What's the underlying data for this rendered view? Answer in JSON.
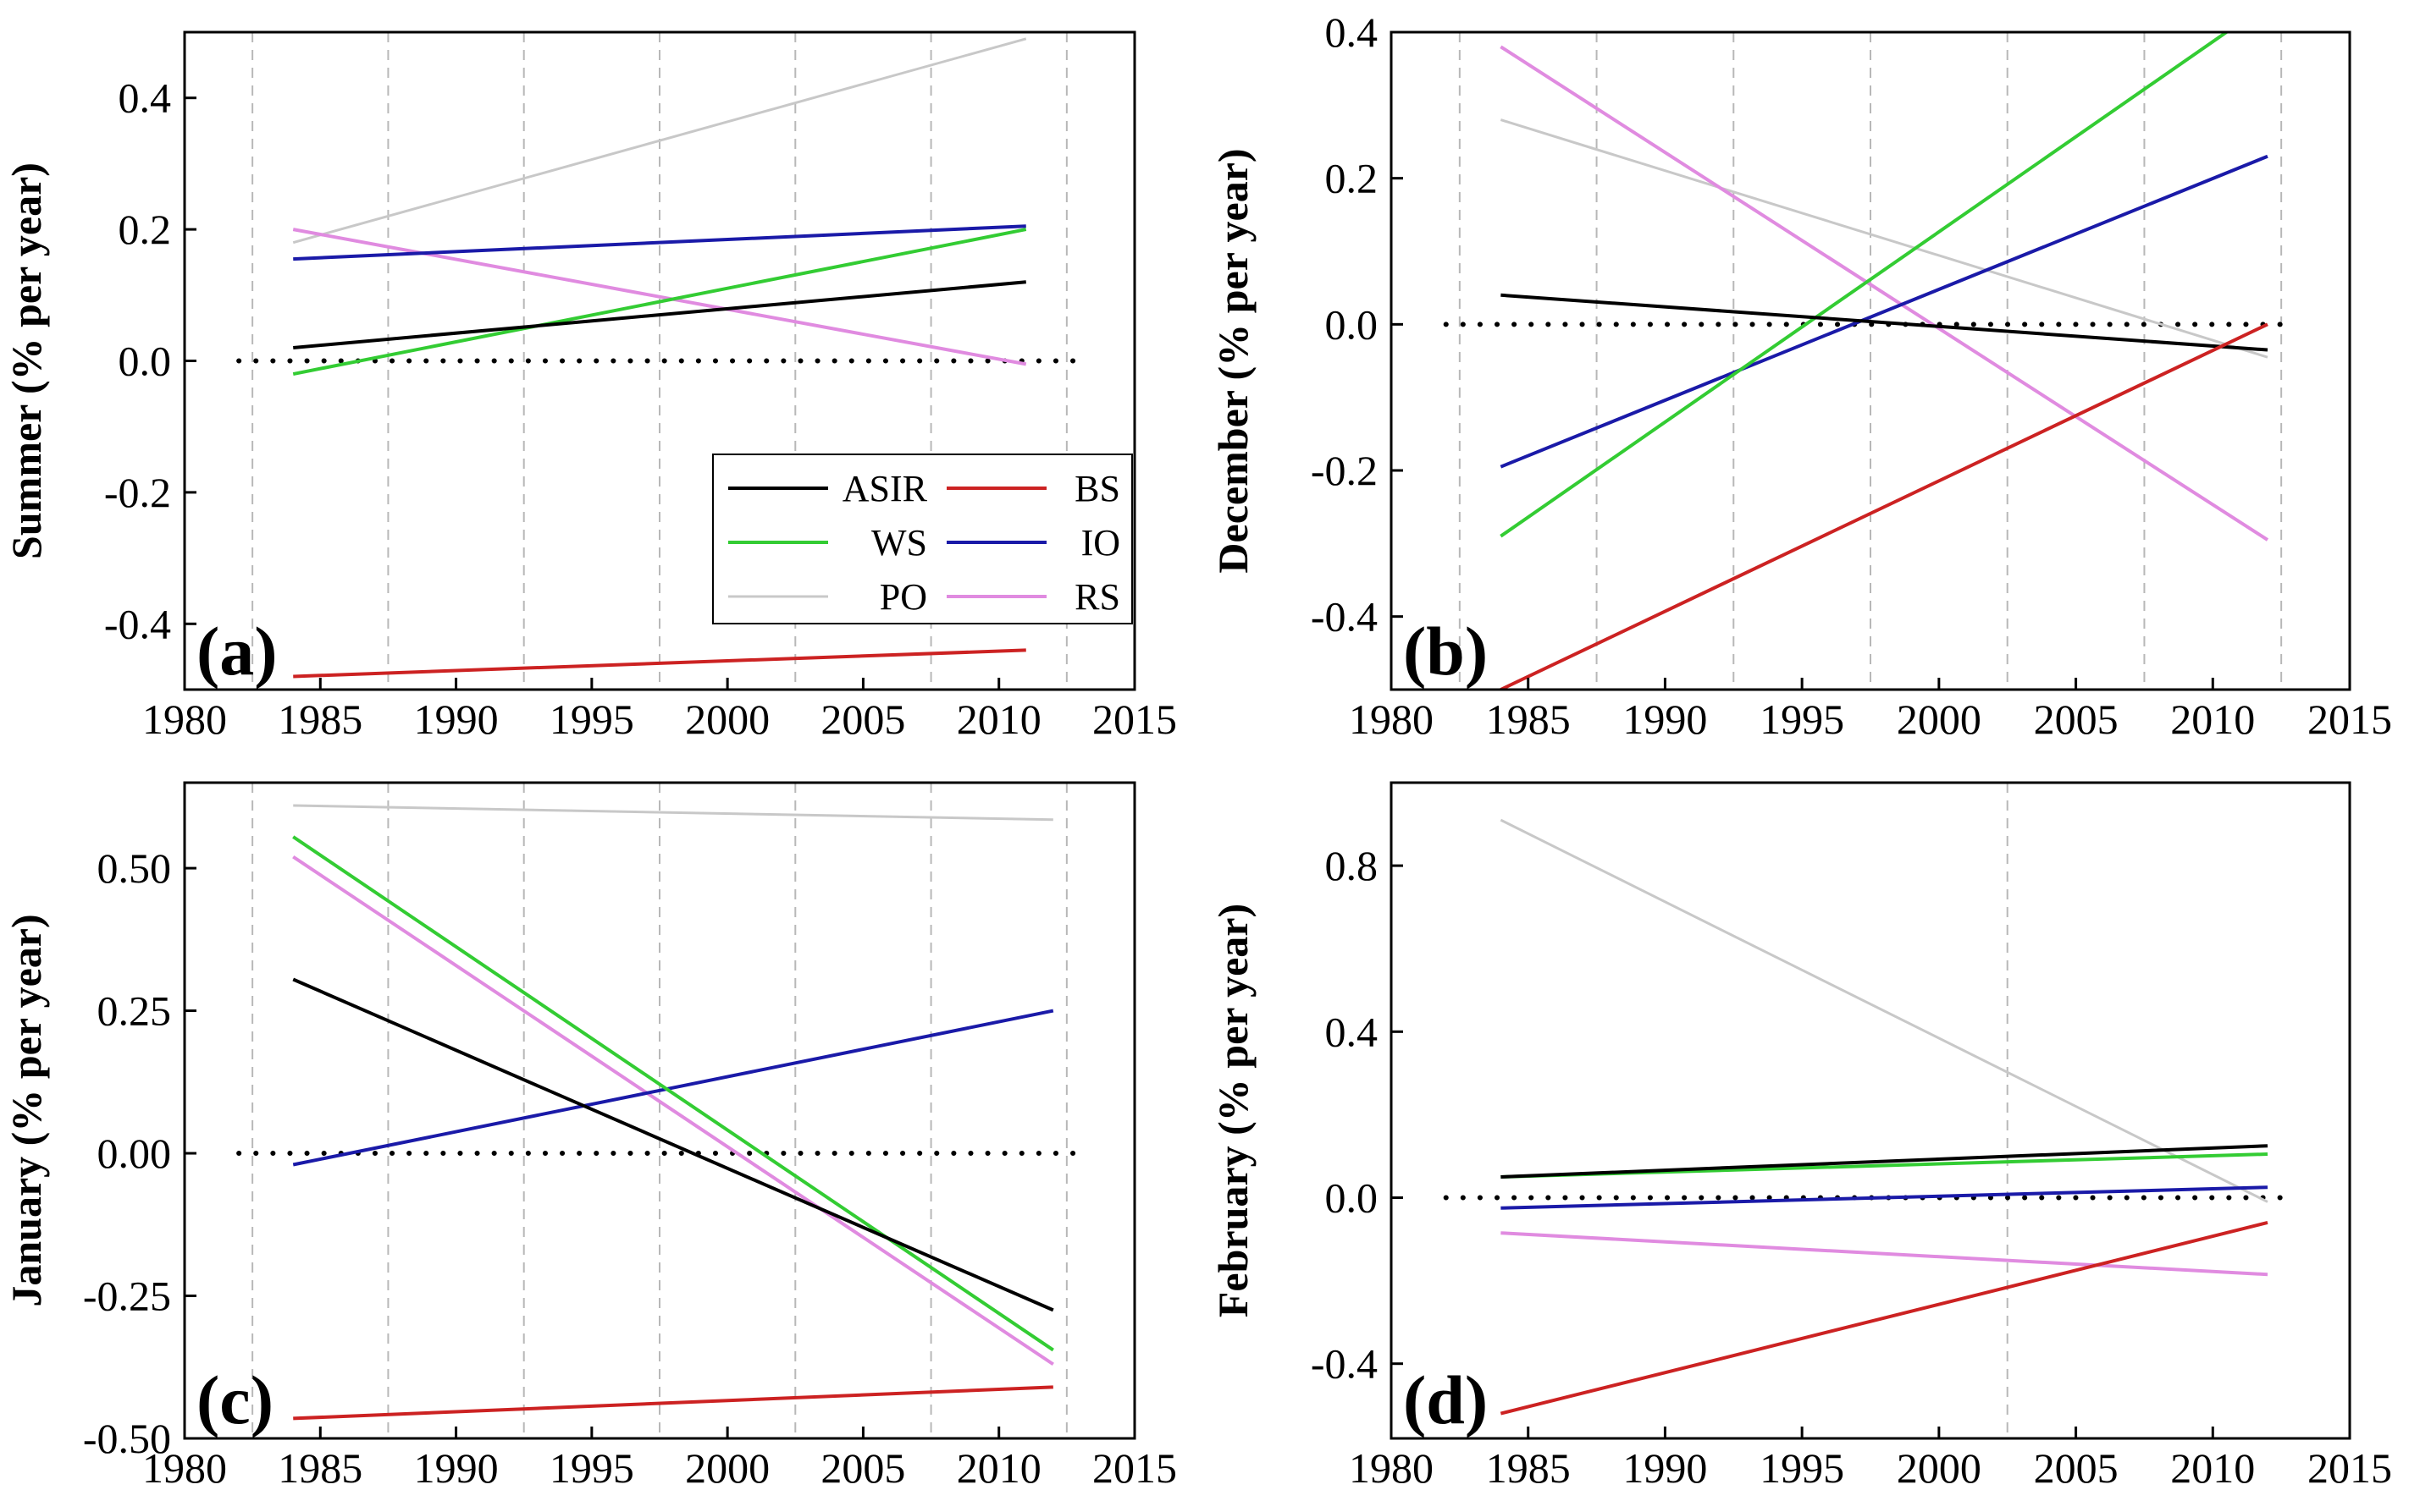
{
  "chart_data": [
    {
      "type": "line",
      "panel_label": "(a)",
      "ylabel": "Summer (% per year)",
      "xlim": [
        1980,
        2015
      ],
      "ylim": [
        -0.5,
        0.5
      ],
      "xticks": [
        "1980",
        "1985",
        "1990",
        "1995",
        "2000",
        "2005",
        "2010",
        "2015"
      ],
      "yticks": [
        {
          "v": 0.4,
          "t": "0.4"
        },
        {
          "v": 0.2,
          "t": "0.2"
        },
        {
          "v": 0.0,
          "t": "0.0"
        },
        {
          "v": -0.2,
          "t": "-0.2"
        },
        {
          "v": -0.4,
          "t": "-0.4"
        }
      ],
      "grid_x": [
        1982.5,
        1987.5,
        1992.5,
        1997.5,
        2002.5,
        2007.5,
        2012.5
      ],
      "zero_line": [
        1982,
        2013
      ],
      "series": [
        {
          "name": "ASIR",
          "x": [
            1984,
            2011
          ],
          "values": [
            0.02,
            0.12
          ]
        },
        {
          "name": "WS",
          "x": [
            1984,
            2011
          ],
          "values": [
            -0.02,
            0.2
          ]
        },
        {
          "name": "PO",
          "x": [
            1984,
            2011
          ],
          "values": [
            0.18,
            0.49
          ]
        },
        {
          "name": "BS",
          "x": [
            1984,
            2011
          ],
          "values": [
            -0.48,
            -0.44
          ]
        },
        {
          "name": "IO",
          "x": [
            1984,
            2011
          ],
          "values": [
            0.155,
            0.205
          ]
        },
        {
          "name": "RS",
          "x": [
            1984,
            2011
          ],
          "values": [
            0.2,
            -0.005
          ]
        }
      ],
      "legend": {
        "position": "lower-right",
        "entries": [
          {
            "label": "ASIR",
            "series": "ASIR"
          },
          {
            "label": "BS",
            "series": "BS"
          },
          {
            "label": "WS",
            "series": "WS"
          },
          {
            "label": "IO",
            "series": "IO"
          },
          {
            "label": "PO",
            "series": "PO"
          },
          {
            "label": "RS",
            "series": "RS"
          }
        ]
      }
    },
    {
      "type": "line",
      "panel_label": "(b)",
      "ylabel": "December (% per year)",
      "xlim": [
        1980,
        2015
      ],
      "ylim": [
        -0.5,
        0.4
      ],
      "xticks": [
        "1980",
        "1985",
        "1990",
        "1995",
        "2000",
        "2005",
        "2010",
        "2015"
      ],
      "yticks": [
        {
          "v": 0.4,
          "t": "0.4"
        },
        {
          "v": 0.2,
          "t": "0.2"
        },
        {
          "v": 0.0,
          "t": "0.0"
        },
        {
          "v": -0.2,
          "t": "-0.2"
        },
        {
          "v": -0.4,
          "t": "-0.4"
        }
      ],
      "grid_x": [
        1982.5,
        1987.5,
        1992.5,
        1997.5,
        2002.5,
        2007.5,
        2012.5
      ],
      "zero_line": [
        1982,
        2013
      ],
      "series": [
        {
          "name": "ASIR",
          "x": [
            1984,
            2012
          ],
          "values": [
            0.04,
            -0.035
          ]
        },
        {
          "name": "WS",
          "x": [
            1984,
            2010.5
          ],
          "values": [
            -0.29,
            0.4
          ]
        },
        {
          "name": "PO",
          "x": [
            1984,
            2012
          ],
          "values": [
            0.28,
            -0.045
          ]
        },
        {
          "name": "BS",
          "x": [
            1984,
            2012
          ],
          "values": [
            -0.5,
            0.0
          ]
        },
        {
          "name": "IO",
          "x": [
            1984,
            2012
          ],
          "values": [
            -0.195,
            0.23
          ]
        },
        {
          "name": "RS",
          "x": [
            1984,
            2012
          ],
          "values": [
            0.38,
            -0.295
          ]
        }
      ]
    },
    {
      "type": "line",
      "panel_label": "(c)",
      "ylabel": "January (% per year)",
      "xlim": [
        1980,
        2015
      ],
      "ylim": [
        -0.5,
        0.65
      ],
      "xticks": [
        "1980",
        "1985",
        "1990",
        "1995",
        "2000",
        "2005",
        "2010",
        "2015"
      ],
      "yticks": [
        {
          "v": 0.5,
          "t": "0.50"
        },
        {
          "v": 0.25,
          "t": "0.25"
        },
        {
          "v": 0.0,
          "t": "0.00"
        },
        {
          "v": -0.25,
          "t": "-0.25"
        },
        {
          "v": -0.5,
          "t": "-0.50"
        }
      ],
      "grid_x": [
        1982.5,
        1987.5,
        1992.5,
        1997.5,
        2002.5,
        2007.5,
        2012.5
      ],
      "zero_line": [
        1982,
        2013
      ],
      "series": [
        {
          "name": "ASIR",
          "x": [
            1984,
            2012
          ],
          "values": [
            0.305,
            -0.275
          ]
        },
        {
          "name": "WS",
          "x": [
            1984,
            2012
          ],
          "values": [
            0.555,
            -0.345
          ]
        },
        {
          "name": "PO",
          "x": [
            1984,
            2012
          ],
          "values": [
            0.61,
            0.585
          ]
        },
        {
          "name": "BS",
          "x": [
            1984,
            2012
          ],
          "values": [
            -0.465,
            -0.41
          ]
        },
        {
          "name": "IO",
          "x": [
            1984,
            2012
          ],
          "values": [
            -0.02,
            0.25
          ]
        },
        {
          "name": "RS",
          "x": [
            1984,
            2012
          ],
          "values": [
            0.52,
            -0.37
          ]
        }
      ]
    },
    {
      "type": "line",
      "panel_label": "(d)",
      "ylabel": "February (% per year)",
      "xlim": [
        1980,
        2015
      ],
      "ylim": [
        -0.58,
        1.0
      ],
      "xticks": [
        "1980",
        "1985",
        "1990",
        "1995",
        "2000",
        "2005",
        "2010",
        "2015"
      ],
      "yticks": [
        {
          "v": 0.8,
          "t": "0.8"
        },
        {
          "v": 0.4,
          "t": "0.4"
        },
        {
          "v": 0.0,
          "t": "0.0"
        },
        {
          "v": -0.4,
          "t": "-0.4"
        }
      ],
      "grid_x": [
        2002.5
      ],
      "zero_line": [
        1982,
        2013
      ],
      "series": [
        {
          "name": "ASIR",
          "x": [
            1984,
            2012
          ],
          "values": [
            0.05,
            0.125
          ]
        },
        {
          "name": "WS",
          "x": [
            1984,
            2012
          ],
          "values": [
            0.05,
            0.105
          ]
        },
        {
          "name": "PO",
          "x": [
            1984,
            2012
          ],
          "values": [
            0.91,
            -0.01
          ]
        },
        {
          "name": "BS",
          "x": [
            1984,
            2012
          ],
          "values": [
            -0.52,
            -0.06
          ]
        },
        {
          "name": "IO",
          "x": [
            1984,
            2012
          ],
          "values": [
            -0.025,
            0.025
          ]
        },
        {
          "name": "RS",
          "x": [
            1984,
            2012
          ],
          "values": [
            -0.085,
            -0.185
          ]
        }
      ]
    }
  ],
  "colors": {
    "ASIR": "#000000",
    "WS": "#33cc33",
    "PO": "#c8c8c8",
    "BS": "#cc2222",
    "IO": "#1a1aa8",
    "RS": "#e08be0"
  }
}
